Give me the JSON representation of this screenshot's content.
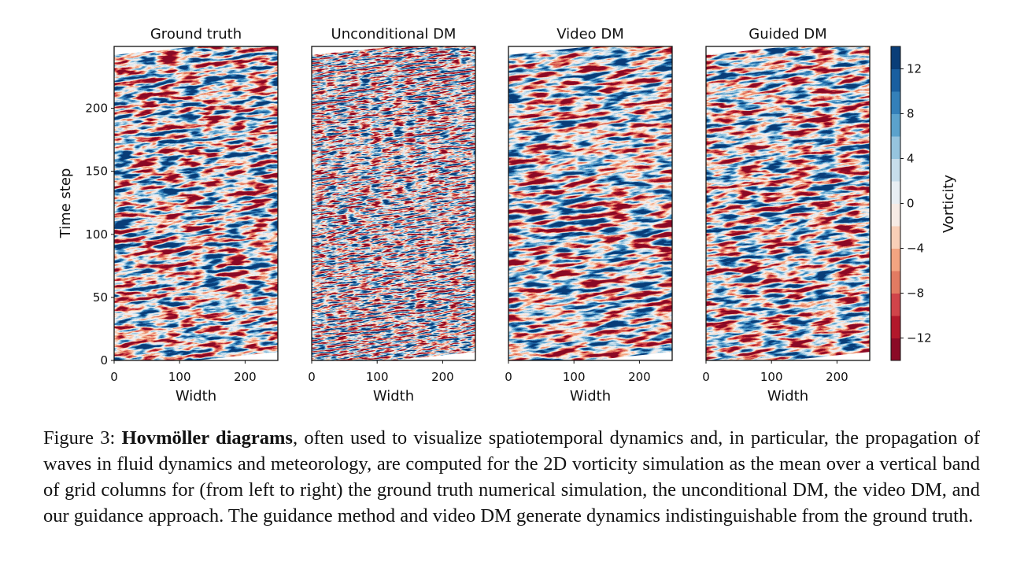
{
  "figure": {
    "panels": [
      {
        "title": "Ground truth",
        "xlabel": "Width"
      },
      {
        "title": "Unconditional DM",
        "xlabel": "Width"
      },
      {
        "title": "Video DM",
        "xlabel": "Width"
      },
      {
        "title": "Guided DM",
        "xlabel": "Width"
      }
    ],
    "ylabel": "Time step",
    "xlim": [
      0,
      250
    ],
    "xticks": [
      0,
      100,
      200
    ],
    "ylim": [
      0,
      249
    ],
    "yticks": [
      0,
      50,
      100,
      150,
      200
    ],
    "colorbar": {
      "label": "Vorticity",
      "lim": [
        -14,
        14
      ],
      "ticks": [
        {
          "value": -12,
          "label": "−12"
        },
        {
          "value": -8,
          "label": "−8"
        },
        {
          "value": -4,
          "label": "−4"
        },
        0,
        4,
        8,
        12
      ],
      "colors": [
        "#8b0a26",
        "#b2182b",
        "#d0444a",
        "#e27b62",
        "#f3a481",
        "#f9cfb7",
        "#f7ebe5",
        "#e8eef3",
        "#c7ddeb",
        "#96c4de",
        "#5ba2cc",
        "#3480b9",
        "#1a5fa0",
        "#0a3e78"
      ]
    }
  },
  "caption": {
    "label": "Figure 3:",
    "bold": "Hovmöller diagrams",
    "text": ", often used to visualize spatiotemporal dynamics and, in particular, the propagation of waves in fluid dynamics and meteorology, are computed for the 2D vorticity simulation as the mean over a vertical band of grid columns for (from left to right) the ground truth numerical simulation, the unconditional DM, the video DM, and our guidance approach. The guidance method and video DM generate dynamics indistinguishable from the ground truth."
  }
}
